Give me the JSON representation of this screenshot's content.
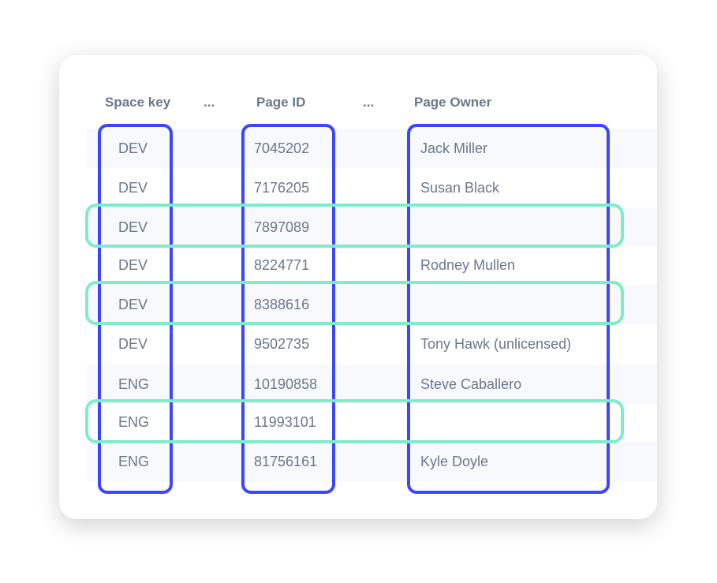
{
  "table": {
    "headers": [
      "Space key",
      "...",
      "Page ID",
      "...",
      "Page Owner"
    ],
    "rows": [
      {
        "space_key": "DEV",
        "page_id": "7045202",
        "owner": "Jack Miller"
      },
      {
        "space_key": "DEV",
        "page_id": "7176205",
        "owner": "Susan Black"
      },
      {
        "space_key": "DEV",
        "page_id": "7897089",
        "owner": ""
      },
      {
        "space_key": "DEV",
        "page_id": "8224771",
        "owner": "Rodney Mullen"
      },
      {
        "space_key": "DEV",
        "page_id": "8388616",
        "owner": ""
      },
      {
        "space_key": "DEV",
        "page_id": "9502735",
        "owner": "Tony Hawk (unlicensed)"
      },
      {
        "space_key": "ENG",
        "page_id": "10190858",
        "owner": "Steve Caballero"
      },
      {
        "space_key": "ENG",
        "page_id": "11993101",
        "owner": ""
      },
      {
        "space_key": "ENG",
        "page_id": "81756161",
        "owner": "Kyle Doyle"
      }
    ]
  },
  "colors": {
    "column_highlight": "#3a46ff",
    "row_highlight": "#7eecc8",
    "text": "#6b778c",
    "stripe": "#f7f9fc"
  }
}
